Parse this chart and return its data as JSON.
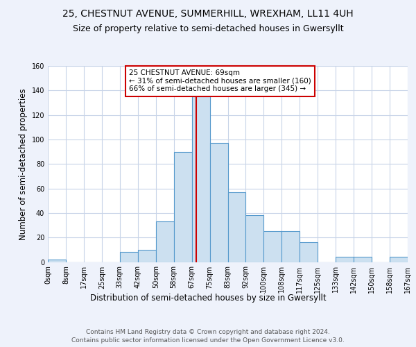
{
  "title": "25, CHESTNUT AVENUE, SUMMERHILL, WREXHAM, LL11 4UH",
  "subtitle": "Size of property relative to semi-detached houses in Gwersyllt",
  "xlabel": "Distribution of semi-detached houses by size in Gwersyllt",
  "ylabel": "Number of semi-detached properties",
  "bin_labels": [
    "0sqm",
    "8sqm",
    "17sqm",
    "25sqm",
    "33sqm",
    "42sqm",
    "50sqm",
    "58sqm",
    "67sqm",
    "75sqm",
    "83sqm",
    "92sqm",
    "100sqm",
    "108sqm",
    "117sqm",
    "125sqm",
    "133sqm",
    "142sqm",
    "150sqm",
    "158sqm",
    "167sqm"
  ],
  "bar_values": [
    2,
    0,
    0,
    0,
    8,
    10,
    33,
    90,
    135,
    97,
    57,
    38,
    25,
    25,
    16,
    0,
    4,
    4,
    0,
    4
  ],
  "bar_color": "#cce0f0",
  "bar_edgecolor": "#5599cc",
  "property_size": 69,
  "property_label": "25 CHESTNUT AVENUE: 69sqm",
  "smaller_pct": 31,
  "smaller_count": 160,
  "larger_pct": 66,
  "larger_count": 345,
  "vline_color": "#cc0000",
  "annotation_box_edgecolor": "#cc0000",
  "ylim": [
    0,
    160
  ],
  "yticks": [
    0,
    20,
    40,
    60,
    80,
    100,
    120,
    140,
    160
  ],
  "footer1": "Contains HM Land Registry data © Crown copyright and database right 2024.",
  "footer2": "Contains public sector information licensed under the Open Government Licence v3.0.",
  "bg_color": "#eef2fb",
  "plot_bg_color": "#ffffff",
  "grid_color": "#c8d4e8",
  "title_fontsize": 10,
  "subtitle_fontsize": 9,
  "axis_label_fontsize": 8.5,
  "tick_fontsize": 7,
  "footer_fontsize": 6.5,
  "annotation_fontsize": 7.5
}
